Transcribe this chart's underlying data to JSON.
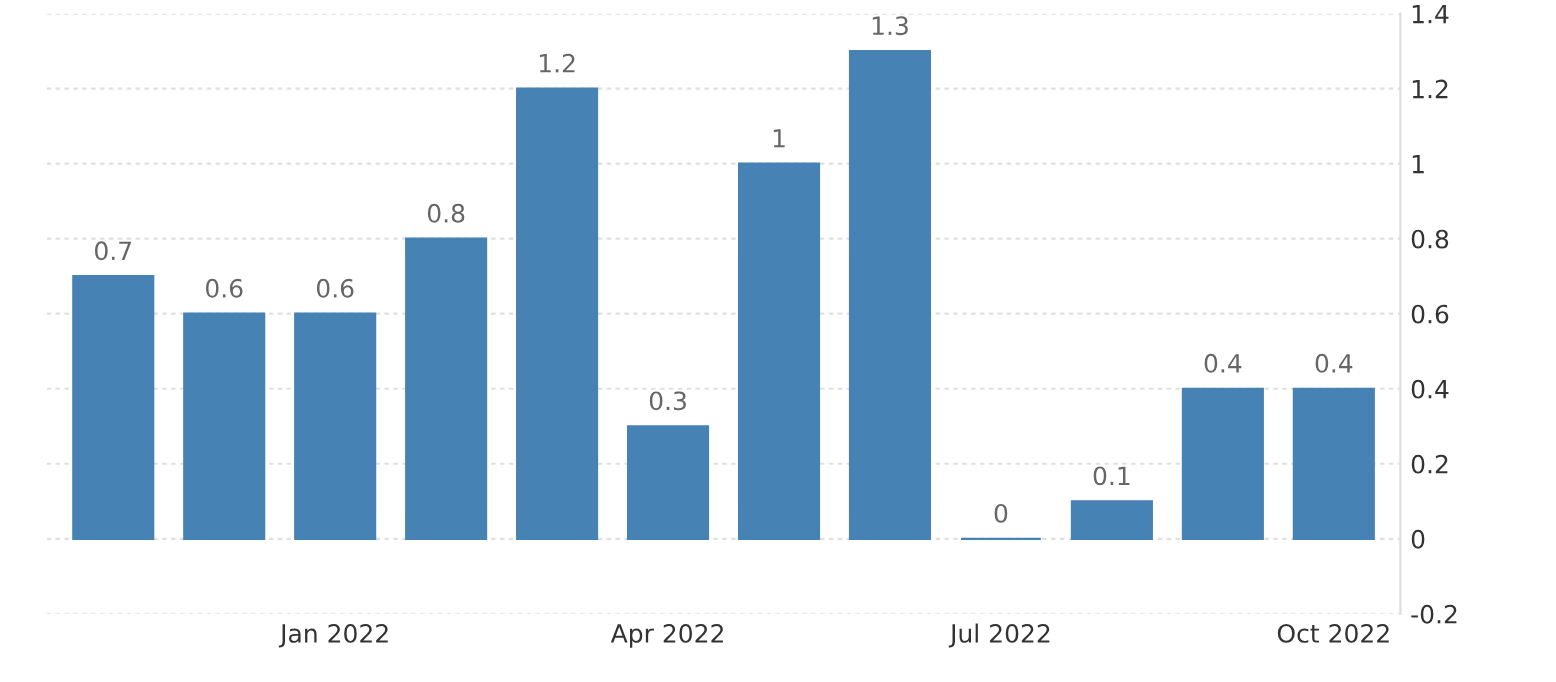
{
  "chart_data": {
    "type": "bar",
    "categories": [
      null,
      null,
      "Jan 2022",
      null,
      null,
      "Apr 2022",
      null,
      null,
      "Jul 2022",
      null,
      null,
      "Oct 2022"
    ],
    "values": [
      0.7,
      0.6,
      0.6,
      0.8,
      1.2,
      0.3,
      1,
      1.3,
      0,
      0.1,
      0.4,
      0.4
    ],
    "color": "#4682b4",
    "ylim": [
      -0.2,
      1.4
    ],
    "yticks": [
      -0.2,
      0,
      0.2,
      0.4,
      0.6,
      0.8,
      1,
      1.2,
      1.4
    ],
    "grid": "y",
    "data_labels": true
  }
}
